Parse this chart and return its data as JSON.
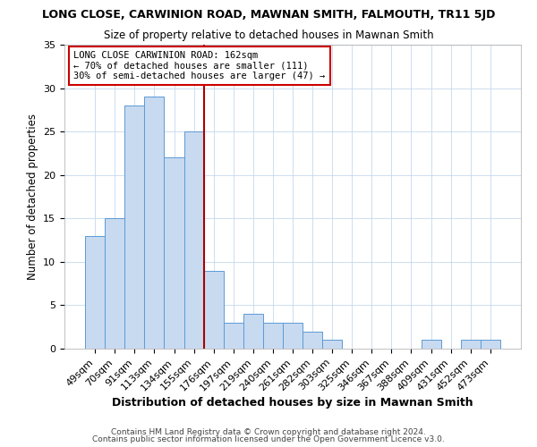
{
  "title": "LONG CLOSE, CARWINION ROAD, MAWNAN SMITH, FALMOUTH, TR11 5JD",
  "subtitle": "Size of property relative to detached houses in Mawnan Smith",
  "xlabel": "Distribution of detached houses by size in Mawnan Smith",
  "ylabel": "Number of detached properties",
  "footer1": "Contains HM Land Registry data © Crown copyright and database right 2024.",
  "footer2": "Contains public sector information licensed under the Open Government Licence v3.0.",
  "bins": [
    "49sqm",
    "70sqm",
    "91sqm",
    "113sqm",
    "134sqm",
    "155sqm",
    "176sqm",
    "197sqm",
    "219sqm",
    "240sqm",
    "261sqm",
    "282sqm",
    "303sqm",
    "325sqm",
    "346sqm",
    "367sqm",
    "388sqm",
    "409sqm",
    "431sqm",
    "452sqm",
    "473sqm"
  ],
  "values": [
    13,
    15,
    28,
    29,
    22,
    25,
    9,
    3,
    4,
    3,
    3,
    2,
    1,
    0,
    0,
    0,
    0,
    1,
    0,
    1,
    1
  ],
  "bar_color": "#c8daf0",
  "bar_edge_color": "#5b9bd5",
  "vline_color": "#aa0000",
  "vline_x": 5.5,
  "annotation_title": "LONG CLOSE CARWINION ROAD: 162sqm",
  "annotation_line1": "← 70% of detached houses are smaller (111)",
  "annotation_line2": "30% of semi-detached houses are larger (47) →",
  "annotation_box_color": "#ffffff",
  "annotation_border_color": "#cc0000",
  "ylim": [
    0,
    35
  ],
  "yticks": [
    0,
    5,
    10,
    15,
    20,
    25,
    30,
    35
  ],
  "title_fontsize": 9.0,
  "subtitle_fontsize": 8.5,
  "xlabel_fontsize": 9.0,
  "ylabel_fontsize": 8.5,
  "tick_fontsize": 8.0,
  "footer_fontsize": 6.5,
  "annotation_fontsize": 7.5
}
